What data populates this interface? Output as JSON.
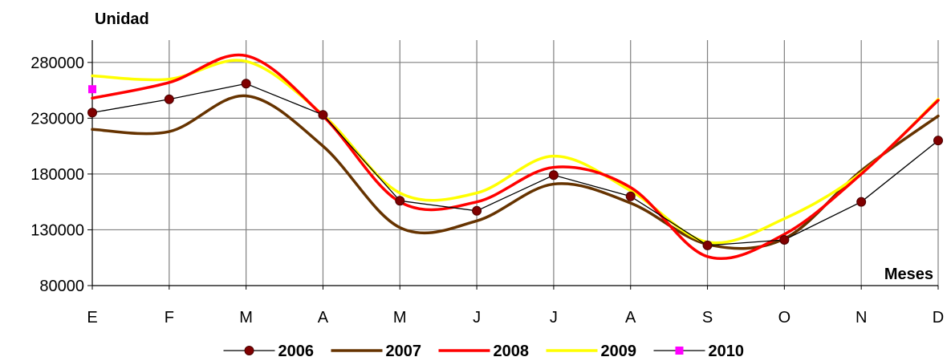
{
  "chart_data": {
    "type": "line",
    "ylabel": "Unidad",
    "xlabel": "Meses",
    "categories": [
      "E",
      "F",
      "M",
      "A",
      "M",
      "J",
      "J",
      "A",
      "S",
      "O",
      "N",
      "D"
    ],
    "ylim": [
      80000,
      300000
    ],
    "yticks": [
      80000,
      130000,
      180000,
      230000,
      280000
    ],
    "grid": true,
    "legend_position": "bottom",
    "series": [
      {
        "name": "2006",
        "color": "#800000",
        "smooth": false,
        "marker": "circle",
        "values": [
          235000,
          247000,
          261000,
          233000,
          156000,
          147000,
          179000,
          160000,
          116000,
          121000,
          155000,
          210000
        ]
      },
      {
        "name": "2007",
        "color": "#663300",
        "smooth": true,
        "marker": "none",
        "values": [
          220000,
          218000,
          250000,
          205000,
          132000,
          138000,
          171000,
          154000,
          117000,
          122000,
          183000,
          232000
        ]
      },
      {
        "name": "2008",
        "color": "#ff0000",
        "smooth": true,
        "marker": "none",
        "values": [
          248000,
          262000,
          286000,
          232000,
          155000,
          155000,
          186000,
          168000,
          106000,
          126000,
          180000,
          246000
        ]
      },
      {
        "name": "2009",
        "color": "#ffff00",
        "smooth": true,
        "marker": "none",
        "values": [
          268000,
          265000,
          281000,
          233000,
          163000,
          163000,
          196000,
          165000,
          119000,
          140000,
          181000,
          247000
        ]
      },
      {
        "name": "2010",
        "color": "#ff00ff",
        "smooth": false,
        "marker": "square",
        "values": [
          256000,
          null,
          null,
          null,
          null,
          null,
          null,
          null,
          null,
          null,
          null,
          null
        ]
      }
    ]
  }
}
